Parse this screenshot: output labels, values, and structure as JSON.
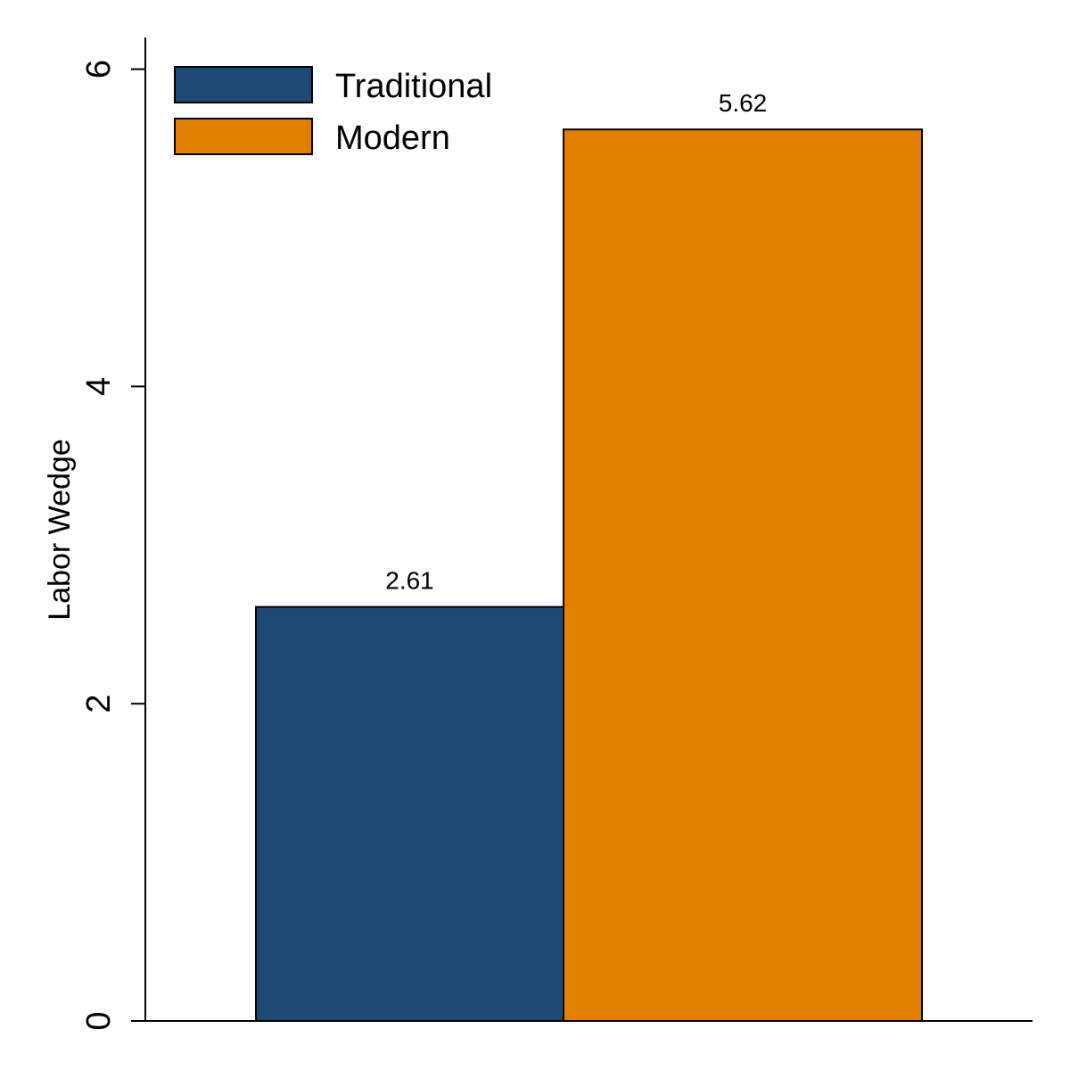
{
  "chart_data": {
    "type": "bar",
    "title": "",
    "xlabel": "",
    "ylabel": "Labor Wedge",
    "ylim": [
      0,
      6.2
    ],
    "yticks": [
      0,
      2,
      4,
      6
    ],
    "grid": false,
    "legend_position": "top-left",
    "series": [
      {
        "name": "Traditional",
        "value": 2.61,
        "label": "2.61",
        "color": "#1f4a73"
      },
      {
        "name": "Modern",
        "value": 5.62,
        "label": "5.62",
        "color": "#e37f00"
      }
    ]
  }
}
